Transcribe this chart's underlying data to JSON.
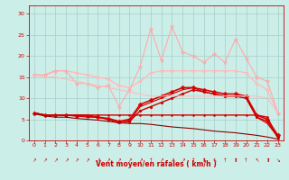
{
  "bg_color": "#cceee8",
  "grid_color": "#aad4ce",
  "xlabel": "Vent moyen/en rafales ( km/h )",
  "ylim": [
    0,
    32
  ],
  "xlim": [
    -0.5,
    23.5
  ],
  "yticks": [
    0,
    5,
    10,
    15,
    20,
    25,
    30
  ],
  "xticks": [
    0,
    1,
    2,
    3,
    4,
    5,
    6,
    7,
    8,
    9,
    10,
    11,
    12,
    13,
    14,
    15,
    16,
    17,
    18,
    19,
    20,
    21,
    22,
    23
  ],
  "title_color": "#cc0000",
  "series": [
    {
      "comment": "dark red flat line - very flat around 6, drops at end",
      "x": [
        0,
        1,
        2,
        3,
        4,
        5,
        6,
        7,
        8,
        9,
        10,
        11,
        12,
        13,
        14,
        15,
        16,
        17,
        18,
        19,
        20,
        21,
        22,
        23
      ],
      "y": [
        6.5,
        6.0,
        6.0,
        6.0,
        6.0,
        6.0,
        6.0,
        6.0,
        6.0,
        6.0,
        6.0,
        6.0,
        6.0,
        6.0,
        6.0,
        6.0,
        6.0,
        6.0,
        6.0,
        6.0,
        6.0,
        6.0,
        5.5,
        0.5
      ],
      "color": "#cc0000",
      "lw": 1.0,
      "marker": "o",
      "ms": 1.5
    },
    {
      "comment": "dark red - starts ~6, goes up to ~12, then drops",
      "x": [
        0,
        1,
        2,
        3,
        4,
        5,
        6,
        7,
        8,
        9,
        10,
        11,
        12,
        13,
        14,
        15,
        16,
        17,
        18,
        19,
        20,
        21,
        22,
        23
      ],
      "y": [
        6.5,
        6.0,
        6.0,
        6.0,
        6.0,
        6.0,
        5.5,
        5.0,
        4.5,
        4.5,
        7.0,
        8.0,
        9.0,
        10.0,
        11.0,
        12.0,
        11.5,
        11.0,
        10.5,
        10.5,
        10.0,
        5.5,
        4.5,
        0.8
      ],
      "color": "#cc0000",
      "lw": 1.0,
      "marker": "o",
      "ms": 2.0
    },
    {
      "comment": "dark red with diamond markers - rises then drops",
      "x": [
        0,
        1,
        2,
        3,
        4,
        5,
        6,
        7,
        8,
        9,
        10,
        11,
        12,
        13,
        14,
        15,
        16,
        17,
        18,
        19,
        20,
        21,
        22,
        23
      ],
      "y": [
        6.5,
        6.0,
        6.0,
        6.0,
        5.8,
        5.8,
        5.5,
        5.2,
        4.5,
        5.0,
        8.5,
        9.5,
        10.5,
        11.5,
        12.5,
        12.5,
        12.0,
        11.5,
        11.0,
        11.0,
        10.5,
        6.0,
        5.0,
        1.2
      ],
      "color": "#dd0000",
      "lw": 1.2,
      "marker": "D",
      "ms": 2.5
    },
    {
      "comment": "dark red declining line - starts ~6 goes to 0",
      "x": [
        0,
        1,
        2,
        3,
        4,
        5,
        6,
        7,
        8,
        9,
        10,
        11,
        12,
        13,
        14,
        15,
        16,
        17,
        18,
        19,
        20,
        21,
        22,
        23
      ],
      "y": [
        6.3,
        5.8,
        5.5,
        5.5,
        5.2,
        5.0,
        4.8,
        4.5,
        4.2,
        4.0,
        4.0,
        3.8,
        3.5,
        3.2,
        3.0,
        2.8,
        2.5,
        2.2,
        2.0,
        1.8,
        1.5,
        1.2,
        0.8,
        0.3
      ],
      "color": "#880000",
      "lw": 0.8,
      "marker": null,
      "ms": 0
    },
    {
      "comment": "medium red - flat then rises",
      "x": [
        0,
        1,
        2,
        3,
        4,
        5,
        6,
        7,
        8,
        9,
        10,
        11,
        12,
        13,
        14,
        15,
        16,
        17,
        18,
        19,
        20,
        21,
        22,
        23
      ],
      "y": [
        6.5,
        6.0,
        6.0,
        6.0,
        5.8,
        5.5,
        5.5,
        5.0,
        4.0,
        4.5,
        8.0,
        9.0,
        10.0,
        11.0,
        12.0,
        12.5,
        11.5,
        11.0,
        10.5,
        10.5,
        10.0,
        5.5,
        4.0,
        0.8
      ],
      "color": "#cc0000",
      "lw": 0.8,
      "marker": null,
      "ms": 0
    },
    {
      "comment": "light pink - starts ~15.5, stays ~15-16, declines at end to ~6.5",
      "x": [
        0,
        1,
        2,
        3,
        4,
        5,
        6,
        7,
        8,
        9,
        10,
        11,
        12,
        13,
        14,
        15,
        16,
        17,
        18,
        19,
        20,
        21,
        22,
        23
      ],
      "y": [
        15.5,
        15.5,
        16.5,
        16.5,
        16.0,
        15.5,
        15.0,
        14.5,
        13.0,
        12.5,
        14.0,
        16.0,
        16.5,
        16.5,
        16.5,
        16.5,
        16.5,
        16.5,
        16.5,
        16.5,
        16.0,
        13.5,
        12.0,
        6.5
      ],
      "color": "#ffbbbb",
      "lw": 1.0,
      "marker": "D",
      "ms": 2.0
    },
    {
      "comment": "lightest pink - highly variable with peaks, starts ~15, goes up to 27",
      "x": [
        0,
        1,
        2,
        3,
        4,
        5,
        6,
        7,
        8,
        9,
        10,
        11,
        12,
        13,
        14,
        15,
        16,
        17,
        18,
        19,
        20,
        21,
        22,
        23
      ],
      "y": [
        15.5,
        15.5,
        16.5,
        16.5,
        13.5,
        13.5,
        12.5,
        13.0,
        8.0,
        12.0,
        17.5,
        26.5,
        19.0,
        27.0,
        21.0,
        20.0,
        18.5,
        20.5,
        18.5,
        24.0,
        19.5,
        15.0,
        14.0,
        6.5
      ],
      "color": "#ffaaaa",
      "lw": 0.8,
      "marker": "*",
      "ms": 3.5
    },
    {
      "comment": "medium pink declining - starts ~15.5, smooth decline to ~6.5",
      "x": [
        0,
        1,
        2,
        3,
        4,
        5,
        6,
        7,
        8,
        9,
        10,
        11,
        12,
        13,
        14,
        15,
        16,
        17,
        18,
        19,
        20,
        21,
        22,
        23
      ],
      "y": [
        15.5,
        15.0,
        15.0,
        14.5,
        14.0,
        13.5,
        13.0,
        12.5,
        12.0,
        11.5,
        11.0,
        10.5,
        10.5,
        10.5,
        10.5,
        10.5,
        10.5,
        10.5,
        10.5,
        10.5,
        10.5,
        10.5,
        10.0,
        6.5
      ],
      "color": "#ffbbbb",
      "lw": 0.8,
      "marker": null,
      "ms": 0
    }
  ],
  "arrow_chars": [
    "↗",
    "↗",
    "↗",
    "↗",
    "↗",
    "↗",
    "↗",
    "↗",
    "↗",
    "↗",
    "↗",
    "↑",
    "↗",
    "↗",
    "↗",
    "↑",
    "⬆",
    "↖",
    "↑",
    "⬆",
    "↑",
    "↖",
    "⬆",
    "↘"
  ]
}
